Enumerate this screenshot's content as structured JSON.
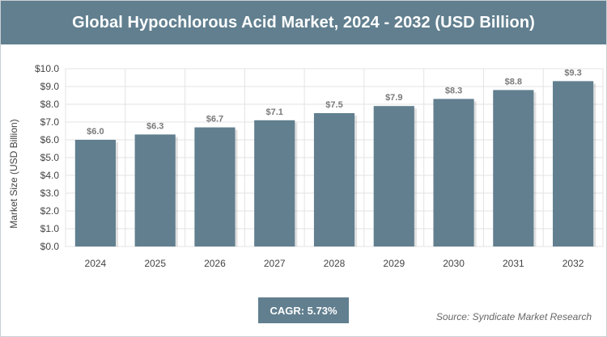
{
  "header": {
    "title": "Global Hypochlorous Acid Market, 2024 - 2032 (USD Billion)"
  },
  "footer": {
    "cagr": "CAGR: 5.73%",
    "source": "Source: Syndicate Market Research"
  },
  "chart_data": {
    "type": "bar",
    "title": "Global Hypochlorous Acid Market, 2024 - 2032 (USD Billion)",
    "xlabel": "",
    "ylabel": "Market Size (USD Billion)",
    "categories": [
      "2024",
      "2025",
      "2026",
      "2027",
      "2028",
      "2029",
      "2030",
      "2031",
      "2032"
    ],
    "values": [
      6.0,
      6.3,
      6.7,
      7.1,
      7.5,
      7.9,
      8.3,
      8.8,
      9.3
    ],
    "data_labels": [
      "$6.0",
      "$6.3",
      "$6.7",
      "$7.1",
      "$7.5",
      "$7.9",
      "$8.3",
      "$8.8",
      "$9.3"
    ],
    "ylim": [
      0,
      10
    ],
    "yticks": [
      0,
      1,
      2,
      3,
      4,
      5,
      6,
      7,
      8,
      9,
      10
    ],
    "ytick_labels": [
      "$0.0",
      "$1.0",
      "$2.0",
      "$3.0",
      "$4.0",
      "$5.0",
      "$6.0",
      "$7.0",
      "$8.0",
      "$9.0",
      "$10.0"
    ],
    "grid": true,
    "bar_color": "#617f8f",
    "grid_color": "#e3e3e3"
  }
}
